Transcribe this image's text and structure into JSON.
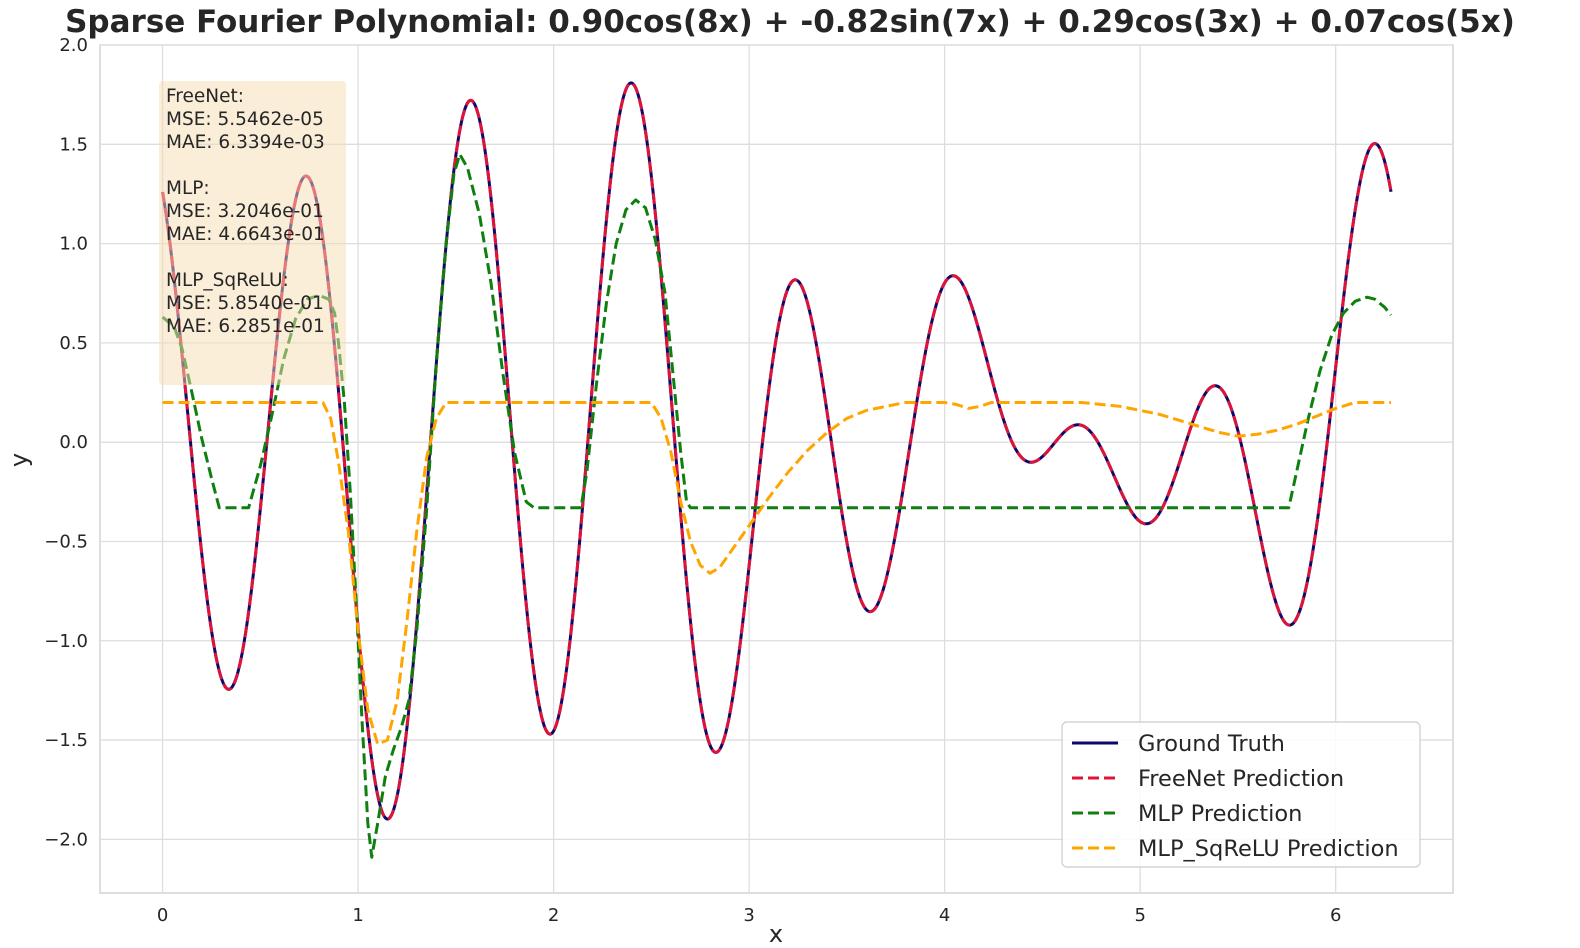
{
  "chart_data": {
    "type": "line",
    "title": "Sparse Fourier Polynomial: 0.90cos(8x) + -0.82sin(7x) + 0.29cos(3x) + 0.07cos(5x)",
    "xlabel": "x",
    "ylabel": "y",
    "xlim": [
      -0.32,
      6.6
    ],
    "ylim": [
      -2.27,
      2.0
    ],
    "xticks": [
      0,
      1,
      2,
      3,
      4,
      5,
      6
    ],
    "yticks": [
      2.0,
      1.5,
      1.0,
      0.5,
      0.0,
      -0.5,
      -1.0,
      -1.5,
      -2.0
    ],
    "ytick_labels": [
      "2.0",
      "1.5",
      "1.0",
      "0.5",
      "0.0",
      "−0.5",
      "−1.0",
      "−1.5",
      "−2.0"
    ],
    "grid": true,
    "legend_position": "lower right",
    "x_range": [
      0,
      6.283
    ],
    "function_terms": [
      {
        "kind": "cos",
        "coef": 0.9,
        "freq": 8
      },
      {
        "kind": "sin",
        "coef": -0.82,
        "freq": 7
      },
      {
        "kind": "cos",
        "coef": 0.29,
        "freq": 3
      },
      {
        "kind": "cos",
        "coef": 0.07,
        "freq": 5
      }
    ],
    "series": [
      {
        "name": "Ground Truth",
        "color": "#0a0a6e",
        "style": "solid",
        "kind": "function"
      },
      {
        "name": "FreeNet Prediction",
        "color": "#dc143c",
        "style": "dashed",
        "kind": "function"
      },
      {
        "name": "MLP Prediction",
        "color": "#0f7f0f",
        "style": "dashed",
        "kind": "points",
        "points": [
          [
            0,
            0.63
          ],
          [
            0.06,
            0.58
          ],
          [
            0.1,
            0.47
          ],
          [
            0.15,
            0.25
          ],
          [
            0.2,
            0.02
          ],
          [
            0.25,
            -0.18
          ],
          [
            0.29,
            -0.33
          ],
          [
            0.44,
            -0.33
          ],
          [
            0.5,
            -0.12
          ],
          [
            0.56,
            0.14
          ],
          [
            0.62,
            0.42
          ],
          [
            0.68,
            0.62
          ],
          [
            0.74,
            0.72
          ],
          [
            0.8,
            0.74
          ],
          [
            0.85,
            0.72
          ],
          [
            0.88,
            0.65
          ],
          [
            0.9,
            0.5
          ],
          [
            0.93,
            0.2
          ],
          [
            0.96,
            -0.25
          ],
          [
            0.99,
            -0.8
          ],
          [
            1.02,
            -1.4
          ],
          [
            1.05,
            -1.92
          ],
          [
            1.07,
            -2.09
          ],
          [
            1.1,
            -1.92
          ],
          [
            1.14,
            -1.68
          ],
          [
            1.18,
            -1.55
          ],
          [
            1.22,
            -1.44
          ],
          [
            1.26,
            -1.3
          ],
          [
            1.3,
            -0.95
          ],
          [
            1.35,
            -0.35
          ],
          [
            1.4,
            0.4
          ],
          [
            1.45,
            1.0
          ],
          [
            1.49,
            1.35
          ],
          [
            1.52,
            1.45
          ],
          [
            1.56,
            1.38
          ],
          [
            1.62,
            1.15
          ],
          [
            1.68,
            0.8
          ],
          [
            1.74,
            0.35
          ],
          [
            1.8,
            -0.05
          ],
          [
            1.86,
            -0.3
          ],
          [
            1.9,
            -0.33
          ],
          [
            2.14,
            -0.33
          ],
          [
            2.17,
            -0.15
          ],
          [
            2.22,
            0.3
          ],
          [
            2.27,
            0.7
          ],
          [
            2.32,
            1.0
          ],
          [
            2.37,
            1.17
          ],
          [
            2.42,
            1.22
          ],
          [
            2.47,
            1.18
          ],
          [
            2.52,
            1.02
          ],
          [
            2.57,
            0.75
          ],
          [
            2.61,
            0.35
          ],
          [
            2.65,
            -0.05
          ],
          [
            2.68,
            -0.3
          ],
          [
            2.7,
            -0.33
          ],
          [
            5.76,
            -0.33
          ],
          [
            5.8,
            -0.15
          ],
          [
            5.86,
            0.12
          ],
          [
            5.92,
            0.36
          ],
          [
            5.98,
            0.54
          ],
          [
            6.04,
            0.65
          ],
          [
            6.1,
            0.71
          ],
          [
            6.16,
            0.73
          ],
          [
            6.2,
            0.72
          ],
          [
            6.25,
            0.68
          ],
          [
            6.283,
            0.64
          ]
        ]
      },
      {
        "name": "MLP_SqReLU Prediction",
        "color": "#ffa500",
        "style": "dashed",
        "kind": "points",
        "points": [
          [
            0,
            0.2
          ],
          [
            0.82,
            0.2
          ],
          [
            0.86,
            0.12
          ],
          [
            0.9,
            -0.1
          ],
          [
            0.95,
            -0.45
          ],
          [
            1.0,
            -0.95
          ],
          [
            1.05,
            -1.35
          ],
          [
            1.1,
            -1.52
          ],
          [
            1.15,
            -1.5
          ],
          [
            1.2,
            -1.3
          ],
          [
            1.25,
            -0.9
          ],
          [
            1.3,
            -0.45
          ],
          [
            1.35,
            -0.08
          ],
          [
            1.4,
            0.12
          ],
          [
            1.45,
            0.2
          ],
          [
            2.5,
            0.2
          ],
          [
            2.55,
            0.12
          ],
          [
            2.6,
            -0.05
          ],
          [
            2.65,
            -0.3
          ],
          [
            2.7,
            -0.5
          ],
          [
            2.75,
            -0.62
          ],
          [
            2.8,
            -0.66
          ],
          [
            2.85,
            -0.63
          ],
          [
            2.9,
            -0.56
          ],
          [
            3.0,
            -0.42
          ],
          [
            3.1,
            -0.28
          ],
          [
            3.2,
            -0.15
          ],
          [
            3.3,
            -0.04
          ],
          [
            3.4,
            0.05
          ],
          [
            3.5,
            0.12
          ],
          [
            3.6,
            0.16
          ],
          [
            3.7,
            0.18
          ],
          [
            3.8,
            0.2
          ],
          [
            4.0,
            0.2
          ],
          [
            4.06,
            0.19
          ],
          [
            4.12,
            0.17
          ],
          [
            4.18,
            0.18
          ],
          [
            4.24,
            0.2
          ],
          [
            4.7,
            0.2
          ],
          [
            4.8,
            0.19
          ],
          [
            4.9,
            0.18
          ],
          [
            5.0,
            0.16
          ],
          [
            5.1,
            0.14
          ],
          [
            5.2,
            0.11
          ],
          [
            5.3,
            0.08
          ],
          [
            5.4,
            0.05
          ],
          [
            5.5,
            0.03
          ],
          [
            5.6,
            0.04
          ],
          [
            5.7,
            0.06
          ],
          [
            5.8,
            0.09
          ],
          [
            5.9,
            0.13
          ],
          [
            6.0,
            0.17
          ],
          [
            6.1,
            0.2
          ],
          [
            6.283,
            0.2
          ]
        ]
      }
    ],
    "metrics": [
      {
        "model": "FreeNet:",
        "mse": "MSE: 5.5462e-05",
        "mae": "MAE: 6.3394e-03"
      },
      {
        "model": "MLP:",
        "mse": "MSE: 3.2046e-01",
        "mae": "MAE: 4.6643e-01"
      },
      {
        "model": "MLP_SqReLU:",
        "mse": "MSE: 5.8540e-01",
        "mae": "MAE: 6.2851e-01"
      }
    ]
  }
}
